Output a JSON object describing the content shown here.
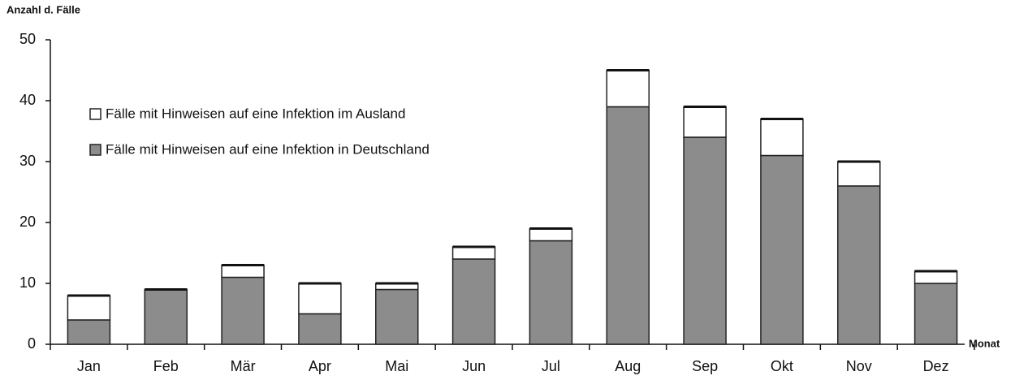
{
  "chart_data": {
    "type": "stacked_bar",
    "y_axis_label": "Anzahl d. Fälle",
    "x_axis_label": "Monat",
    "categories": [
      "Jan",
      "Feb",
      "Mär",
      "Apr",
      "Mai",
      "Jun",
      "Jul",
      "Aug",
      "Sep",
      "Okt",
      "Nov",
      "Dez"
    ],
    "series": [
      {
        "name": "Fälle mit Hinweisen auf eine Infektion in Deutschland",
        "color": "#8c8c8c",
        "values": [
          4,
          9,
          11,
          5,
          9,
          14,
          17,
          39,
          34,
          31,
          26,
          10
        ]
      },
      {
        "name": "Fälle mit Hinweisen auf eine Infektion im Ausland",
        "color": "#ffffff",
        "values": [
          4,
          0,
          2,
          5,
          1,
          2,
          2,
          6,
          5,
          6,
          4,
          2
        ]
      }
    ],
    "ylim": [
      0,
      50
    ],
    "yticks": [
      0,
      10,
      20,
      30,
      40,
      50
    ],
    "grid": false
  }
}
